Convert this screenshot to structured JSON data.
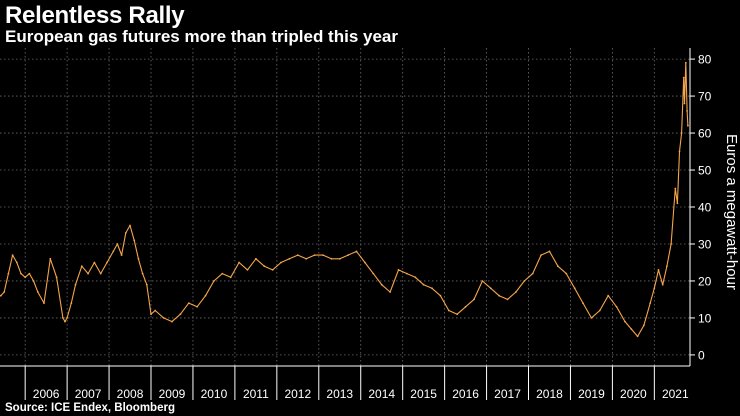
{
  "header": {
    "title": "Relentless Rally",
    "subtitle": "European gas futures more than tripled this year"
  },
  "footer": {
    "source": "Source: ICE Endex, Bloomberg"
  },
  "colors": {
    "background": "#000000",
    "line": "#f5a54a",
    "grid": "#6b6b6b",
    "text": "#ffffff"
  },
  "chart_data": {
    "type": "line",
    "title": "Relentless Rally",
    "subtitle": "European gas futures more than tripled this year",
    "xlabel": "",
    "ylabel": "Euros a megawatt-hour",
    "xlim": [
      2005.4,
      2021.85
    ],
    "ylim": [
      -3,
      83
    ],
    "yticks": [
      0,
      10,
      20,
      30,
      40,
      50,
      60,
      70,
      80
    ],
    "xticks": [
      "2006",
      "2007",
      "2008",
      "2009",
      "2010",
      "2011",
      "2012",
      "2013",
      "2014",
      "2015",
      "2016",
      "2017",
      "2018",
      "2019",
      "2020",
      "2021"
    ],
    "grid": true,
    "y_axis_side": "right",
    "series": [
      {
        "name": "European gas futures",
        "x": [
          2005.42,
          2005.5,
          2005.6,
          2005.7,
          2005.8,
          2005.9,
          2006.0,
          2006.1,
          2006.2,
          2006.3,
          2006.45,
          2006.6,
          2006.75,
          2006.9,
          2006.95,
          2007.0,
          2007.1,
          2007.2,
          2007.35,
          2007.5,
          2007.65,
          2007.8,
          2007.95,
          2008.1,
          2008.2,
          2008.3,
          2008.4,
          2008.5,
          2008.6,
          2008.7,
          2008.8,
          2008.9,
          2009.0,
          2009.1,
          2009.3,
          2009.5,
          2009.7,
          2009.9,
          2010.1,
          2010.3,
          2010.5,
          2010.7,
          2010.9,
          2011.1,
          2011.3,
          2011.5,
          2011.7,
          2011.9,
          2012.1,
          2012.3,
          2012.5,
          2012.7,
          2012.9,
          2013.1,
          2013.3,
          2013.5,
          2013.7,
          2013.9,
          2014.1,
          2014.3,
          2014.5,
          2014.7,
          2014.9,
          2015.1,
          2015.3,
          2015.5,
          2015.7,
          2015.9,
          2016.1,
          2016.3,
          2016.5,
          2016.7,
          2016.9,
          2017.1,
          2017.3,
          2017.5,
          2017.7,
          2017.9,
          2018.1,
          2018.3,
          2018.5,
          2018.7,
          2018.9,
          2019.1,
          2019.3,
          2019.5,
          2019.7,
          2019.9,
          2020.1,
          2020.3,
          2020.45,
          2020.6,
          2020.75,
          2020.9,
          2021.0,
          2021.1,
          2021.2,
          2021.3,
          2021.4,
          2021.5,
          2021.55,
          2021.6,
          2021.65,
          2021.7,
          2021.72,
          2021.75,
          2021.78,
          2021.8
        ],
        "values": [
          16,
          17,
          22,
          27,
          25,
          22,
          21,
          22,
          20,
          17,
          14,
          26,
          21,
          10,
          9,
          10,
          14,
          19,
          24,
          22,
          25,
          22,
          25,
          28,
          30,
          27,
          33,
          35,
          31,
          26,
          22,
          19,
          11,
          12,
          10,
          9,
          11,
          14,
          13,
          16,
          20,
          22,
          21,
          25,
          23,
          26,
          24,
          23,
          25,
          26,
          27,
          26,
          27,
          27,
          26,
          26,
          27,
          28,
          25,
          22,
          19,
          17,
          23,
          22,
          21,
          19,
          18,
          16,
          12,
          11,
          13,
          15,
          20,
          18,
          16,
          15,
          17,
          20,
          22,
          27,
          28,
          24,
          22,
          18,
          14,
          10,
          12,
          16,
          13,
          9,
          7,
          5,
          8,
          14,
          18,
          23,
          19,
          24,
          30,
          45,
          41,
          55,
          60,
          75,
          68,
          79,
          66,
          62
        ]
      }
    ]
  }
}
